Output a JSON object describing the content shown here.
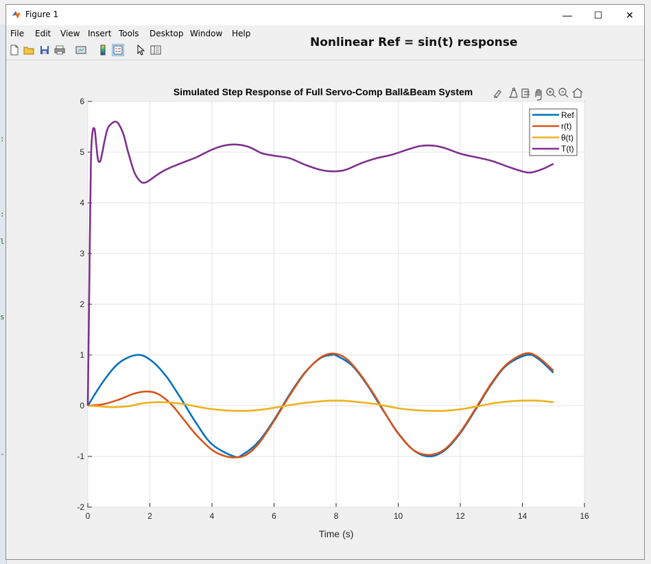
{
  "window": {
    "title": "Figure 1",
    "controls": {
      "minimize": "—",
      "maximize": "☐",
      "close": "✕"
    }
  },
  "menu": {
    "items": [
      "File",
      "Edit",
      "View",
      "Insert",
      "Tools",
      "Desktop",
      "Window",
      "Help"
    ]
  },
  "toolbar": {
    "buttons": [
      "new-figure-icon",
      "open-file-icon",
      "save-icon",
      "print-icon",
      "link-icon",
      "colorbar-icon",
      "legend-icon",
      "pointer-icon",
      "property-editor-icon"
    ]
  },
  "overlay_title": "Nonlinear Ref = sin(t) response",
  "axes_toolbar": [
    "brush-icon",
    "data-tip-icon",
    "export-icon",
    "pan-icon",
    "zoom-in-icon",
    "zoom-out-icon",
    "home-icon"
  ],
  "colors": {
    "ref": "#0072BD",
    "r": "#D95319",
    "theta": "#EDB120",
    "T": "#7E2F8E"
  },
  "chart_data": {
    "type": "line",
    "title": "Simulated Step Response of Full Servo-Comp Ball&Beam System",
    "xlabel": "Time (s)",
    "ylabel": "",
    "xlim": [
      0,
      16
    ],
    "ylim": [
      -2,
      6
    ],
    "xticks": [
      0,
      2,
      4,
      6,
      8,
      10,
      12,
      14,
      16
    ],
    "yticks": [
      -2,
      -1,
      0,
      1,
      2,
      3,
      4,
      5,
      6
    ],
    "grid": true,
    "legend_position": "top-right",
    "series": [
      {
        "name": "Ref",
        "color": "#0072BD",
        "x": [
          0,
          0.5,
          1,
          1.57,
          2,
          2.5,
          3,
          3.5,
          4,
          4.71,
          5,
          5.5,
          6,
          6.5,
          7,
          7.5,
          7.85,
          8,
          8.5,
          9,
          9.5,
          10,
          10.5,
          11,
          11.5,
          12,
          12.5,
          13,
          13.5,
          14.14,
          14.5,
          15
        ],
        "y": [
          0,
          0.48,
          0.84,
          1.0,
          0.91,
          0.6,
          0.14,
          -0.35,
          -0.76,
          -1.0,
          -0.96,
          -0.71,
          -0.28,
          0.22,
          0.66,
          0.94,
          1.0,
          0.99,
          0.8,
          0.41,
          -0.08,
          -0.54,
          -0.88,
          -1.0,
          -0.88,
          -0.54,
          -0.07,
          0.42,
          0.8,
          1.0,
          0.93,
          0.65
        ]
      },
      {
        "name": "r(t)",
        "color": "#D95319",
        "x": [
          0,
          0.5,
          1,
          1.5,
          1.95,
          2.3,
          2.7,
          3.1,
          3.5,
          4,
          4.4,
          4.75,
          5.1,
          5.5,
          6,
          6.5,
          7,
          7.5,
          7.9,
          8.3,
          8.7,
          9.2,
          9.6,
          10,
          10.5,
          11,
          11.5,
          12,
          12.5,
          13,
          13.5,
          14.1,
          14.5,
          15
        ],
        "y": [
          0,
          0.03,
          0.12,
          0.24,
          0.28,
          0.22,
          0.02,
          -0.28,
          -0.58,
          -0.87,
          -0.99,
          -1.02,
          -0.97,
          -0.75,
          -0.3,
          0.2,
          0.65,
          0.95,
          1.03,
          0.94,
          0.68,
          0.24,
          -0.17,
          -0.55,
          -0.88,
          -0.97,
          -0.86,
          -0.52,
          -0.05,
          0.44,
          0.82,
          1.03,
          0.96,
          0.69
        ]
      },
      {
        "name": "θ(t)",
        "color": "#EDB120",
        "x": [
          0,
          0.3,
          0.8,
          1.3,
          1.8,
          2.3,
          2.7,
          3.2,
          3.7,
          4.2,
          4.7,
          5.2,
          5.7,
          6.2,
          6.8,
          7.4,
          7.9,
          8.4,
          8.9,
          9.4,
          9.9,
          10.4,
          11,
          11.5,
          12,
          12.5,
          13,
          13.5,
          14,
          14.5,
          15
        ],
        "y": [
          0,
          -0.01,
          -0.03,
          -0.01,
          0.05,
          0.07,
          0.06,
          0.02,
          -0.04,
          -0.08,
          -0.1,
          -0.1,
          -0.07,
          -0.02,
          0.04,
          0.08,
          0.1,
          0.09,
          0.06,
          0.02,
          -0.04,
          -0.08,
          -0.1,
          -0.1,
          -0.07,
          -0.02,
          0.04,
          0.08,
          0.1,
          0.1,
          0.07
        ]
      },
      {
        "name": "T(t)",
        "color": "#7E2F8E",
        "x": [
          0,
          0.05,
          0.1,
          0.15,
          0.22,
          0.28,
          0.33,
          0.4,
          0.47,
          0.55,
          0.65,
          0.8,
          0.9,
          1.0,
          1.15,
          1.3,
          1.5,
          1.7,
          1.85,
          2.0,
          2.3,
          2.6,
          3.0,
          3.5,
          4.0,
          4.4,
          4.8,
          5.2,
          5.6,
          6.0,
          6.5,
          7.0,
          7.5,
          7.9,
          8.3,
          8.8,
          9.3,
          9.8,
          10.3,
          10.7,
          11.1,
          11.5,
          12.0,
          12.5,
          13.0,
          13.5,
          14.0,
          14.3,
          14.7,
          15.0
        ],
        "y": [
          0,
          2.5,
          4.8,
          5.38,
          5.45,
          5.1,
          4.85,
          4.82,
          5.0,
          5.25,
          5.48,
          5.58,
          5.6,
          5.55,
          5.35,
          5.0,
          4.6,
          4.42,
          4.4,
          4.45,
          4.58,
          4.68,
          4.78,
          4.9,
          5.05,
          5.13,
          5.15,
          5.1,
          4.98,
          4.93,
          4.88,
          4.75,
          4.65,
          4.62,
          4.65,
          4.78,
          4.88,
          4.95,
          5.05,
          5.12,
          5.13,
          5.08,
          4.97,
          4.9,
          4.83,
          4.72,
          4.62,
          4.6,
          4.68,
          4.77
        ]
      }
    ]
  }
}
